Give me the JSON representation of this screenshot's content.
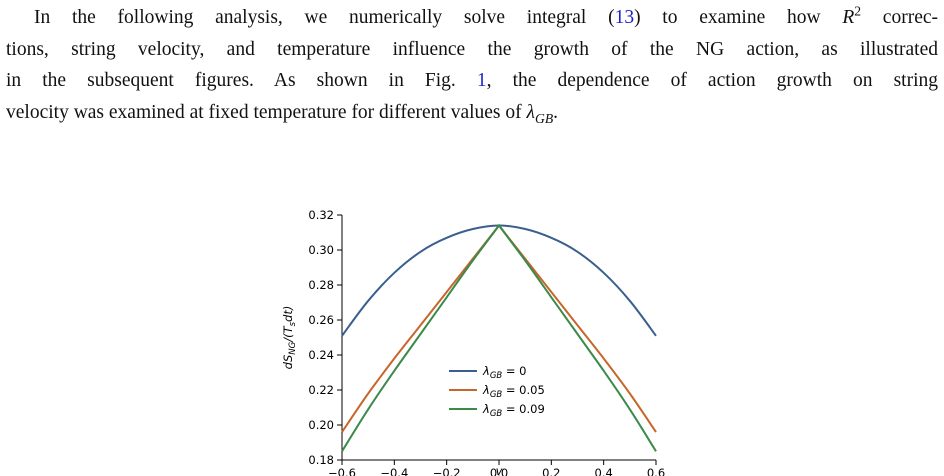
{
  "text": {
    "l1_a": "In the following analysis, we numerically solve integral (",
    "l1_ref": "13",
    "l1_b": ") to examine how ",
    "l1_R": "R",
    "l1_exp": "2",
    "l1_c": " correc-",
    "l2": "tions, string velocity, and temperature influence the growth of the NG action, as illustrated",
    "l3_a": "in the subsequent figures. As shown in Fig. ",
    "l3_ref": "1",
    "l3_b": ", the dependence of action growth on string",
    "l4_a": "velocity was examined at fixed temperature for different values of ",
    "l4_lambda": "λ",
    "l4_sub": "GB",
    "l4_end": "."
  },
  "chart_data": {
    "type": "line",
    "ylabel": "dS_NG/(T_s dt)",
    "xlabel": "v",
    "xlim": [
      -0.6,
      0.6
    ],
    "ylim": [
      0.18,
      0.32
    ],
    "x_ticks": [
      "−0.6",
      "−0.4",
      "−0.2",
      "0.0",
      "0.2",
      "0.4",
      "0.6"
    ],
    "y_ticks": [
      "0.18",
      "0.20",
      "0.22",
      "0.24",
      "0.26",
      "0.28",
      "0.30",
      "0.32"
    ],
    "x_tick_values": [
      -0.6,
      -0.4,
      -0.2,
      0.0,
      0.2,
      0.4,
      0.6
    ],
    "y_tick_values": [
      0.18,
      0.2,
      0.22,
      0.24,
      0.26,
      0.28,
      0.3,
      0.32
    ],
    "legend_position": "lower-center",
    "x": [
      -0.6,
      -0.5,
      -0.4,
      -0.3,
      -0.2,
      -0.1,
      0.0,
      0.1,
      0.2,
      0.3,
      0.4,
      0.5,
      0.6
    ],
    "series": [
      {
        "name": "λ_GB = 0",
        "label_main": "λ",
        "label_sub": "GB",
        "label_val": " = 0",
        "color": "#3a5f8f",
        "values": [
          0.251,
          0.271,
          0.287,
          0.299,
          0.307,
          0.312,
          0.314,
          0.312,
          0.307,
          0.299,
          0.287,
          0.271,
          0.251
        ]
      },
      {
        "name": "λ_GB = 0.05",
        "label_main": "λ",
        "label_sub": "GB",
        "label_val": " = 0.05",
        "color": "#c8652b",
        "values": [
          0.196,
          0.218,
          0.238,
          0.257,
          0.276,
          0.295,
          0.314,
          0.295,
          0.276,
          0.257,
          0.238,
          0.218,
          0.196
        ]
      },
      {
        "name": "λ_GB = 0.09",
        "label_main": "λ",
        "label_sub": "GB",
        "label_val": " = 0.09",
        "color": "#3b8a4a",
        "values": [
          0.185,
          0.209,
          0.231,
          0.252,
          0.273,
          0.294,
          0.314,
          0.294,
          0.273,
          0.252,
          0.231,
          0.209,
          0.185
        ]
      }
    ]
  }
}
